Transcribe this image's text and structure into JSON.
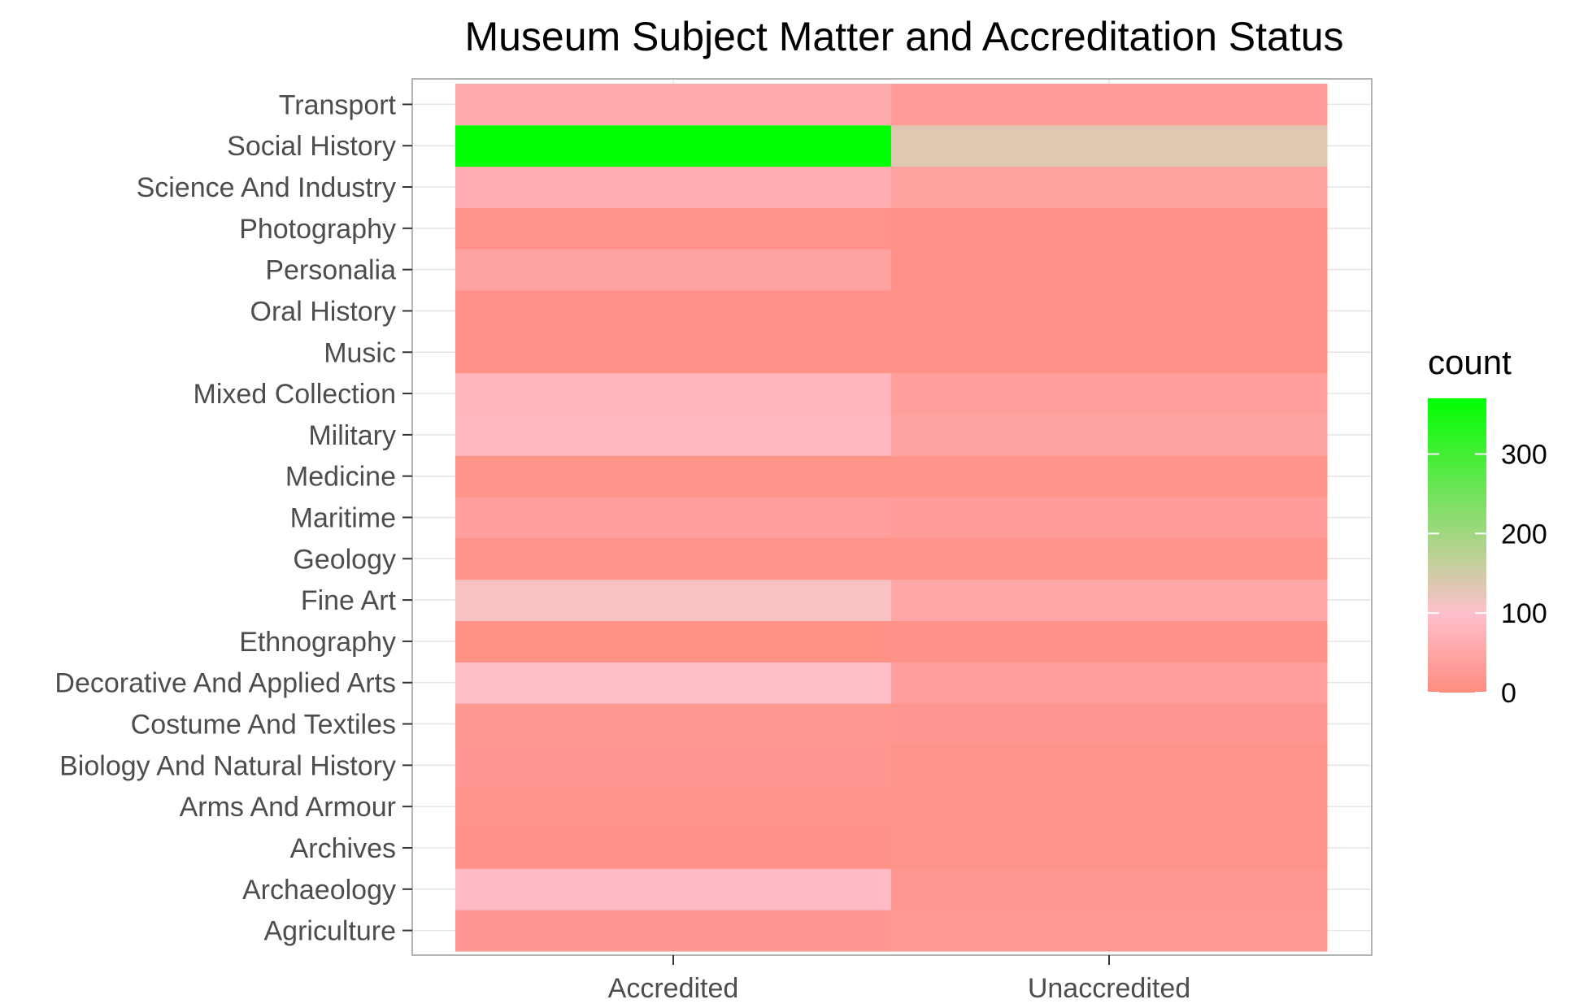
{
  "chart_data": {
    "type": "heatmap",
    "title": "Museum Subject Matter and Accreditation Status",
    "xlabel": "",
    "ylabel": "",
    "x_categories": [
      "Accredited",
      "Unaccredited"
    ],
    "y_categories": [
      "Agriculture",
      "Archaeology",
      "Archives",
      "Arms And Armour",
      "Biology And Natural History",
      "Costume And Textiles",
      "Decorative And Applied Arts",
      "Ethnography",
      "Fine Art",
      "Geology",
      "Maritime",
      "Medicine",
      "Military",
      "Mixed Collection",
      "Music",
      "Oral History",
      "Personalia",
      "Photography",
      "Science And Industry",
      "Social History",
      "Transport"
    ],
    "values": [
      [
        20,
        25
      ],
      [
        90,
        22
      ],
      [
        10,
        15
      ],
      [
        12,
        15
      ],
      [
        20,
        15
      ],
      [
        22,
        20
      ],
      [
        95,
        35
      ],
      [
        8,
        10
      ],
      [
        110,
        50
      ],
      [
        12,
        12
      ],
      [
        35,
        30
      ],
      [
        15,
        15
      ],
      [
        85,
        45
      ],
      [
        80,
        35
      ],
      [
        10,
        10
      ],
      [
        10,
        10
      ],
      [
        45,
        10
      ],
      [
        12,
        10
      ],
      [
        65,
        40
      ],
      [
        370,
        135
      ],
      [
        60,
        30
      ]
    ],
    "legend": {
      "title": "count",
      "ticks": [
        0,
        100,
        200,
        300
      ],
      "range": [
        0,
        370
      ],
      "colors": {
        "low": "#FF8C80",
        "mid": "#FFC0CB",
        "high": "#00FF00"
      },
      "position": "right"
    },
    "grid": true,
    "panel_border_color": "#b3b3b3",
    "grid_color": "#e5e5e5"
  }
}
